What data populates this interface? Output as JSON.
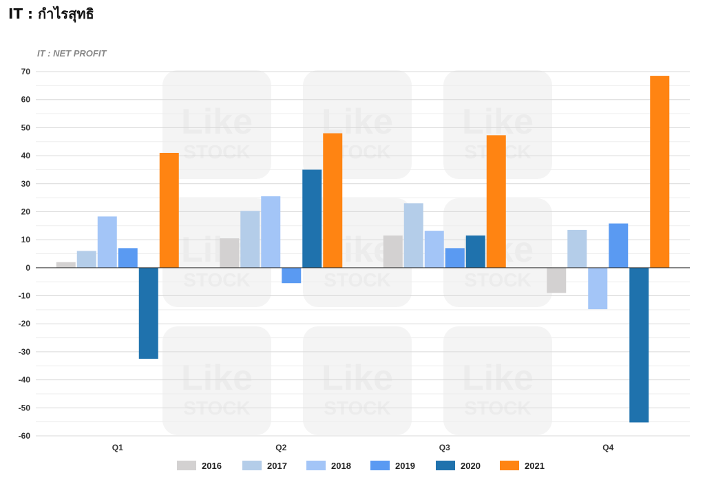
{
  "page": {
    "title": "IT : กำไรสุทธิ"
  },
  "watermark": {
    "line1": "Like",
    "line2": "STOCK"
  },
  "chart_data": {
    "type": "bar",
    "title": "IT : NET PROFIT",
    "xlabel": "",
    "ylabel": "",
    "categories": [
      "Q1",
      "Q2",
      "Q3",
      "Q4"
    ],
    "ylim": [
      -60,
      70
    ],
    "yticks": [
      70,
      60,
      50,
      40,
      30,
      20,
      10,
      0,
      -10,
      -20,
      -30,
      -40,
      -50,
      -60
    ],
    "grid": true,
    "legend_position": "bottom",
    "series": [
      {
        "name": "2016",
        "color": "#d3d1d1",
        "values": [
          2,
          10.5,
          11.5,
          -9
        ]
      },
      {
        "name": "2017",
        "color": "#b4cde9",
        "values": [
          6,
          20.3,
          23,
          13.5
        ]
      },
      {
        "name": "2018",
        "color": "#a3c5f7",
        "values": [
          18.3,
          25.5,
          13.2,
          -14.8
        ]
      },
      {
        "name": "2019",
        "color": "#5a9af2",
        "values": [
          7,
          -5.5,
          7,
          15.8
        ]
      },
      {
        "name": "2020",
        "color": "#1f72ad",
        "values": [
          -32.5,
          35,
          11.5,
          -55.2
        ]
      },
      {
        "name": "2021",
        "color": "#ff8412",
        "values": [
          41,
          48,
          47.3,
          68.5
        ]
      }
    ]
  }
}
